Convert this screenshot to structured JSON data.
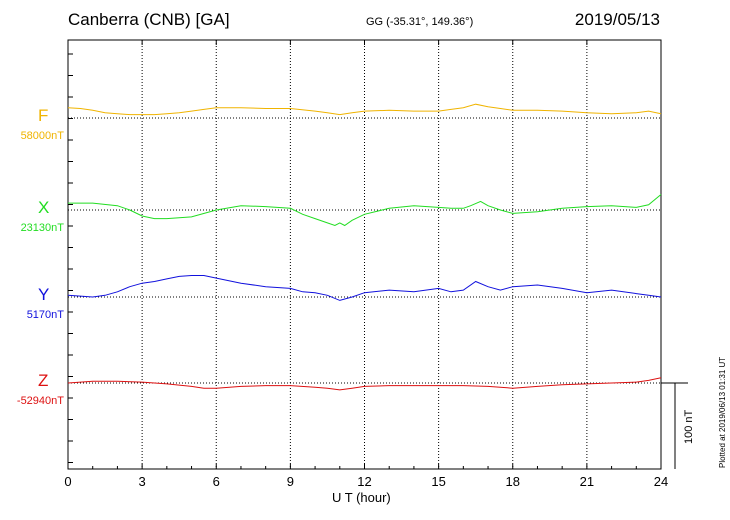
{
  "header": {
    "station": "Canberra (CNB)  [GA]",
    "coords": "GG (-35.31°, 149.36°)",
    "date": "2019/05/13"
  },
  "plotted_note": "Plotted at 2019/06/13 01:31  UT",
  "scale_label": "100 nT",
  "chart_data": {
    "type": "line",
    "xlabel": "U T (hour)",
    "xlim": [
      0,
      24
    ],
    "x_ticks": [
      0,
      3,
      6,
      9,
      12,
      15,
      18,
      21,
      24
    ],
    "grid": true,
    "scale_bar_nT": 100,
    "series": [
      {
        "name": "F",
        "baseline_label": "58000nT",
        "baseline_nT": 58000,
        "color": "#f0b400",
        "x": [
          0,
          0.5,
          1,
          1.5,
          2,
          2.5,
          3,
          3.5,
          4,
          4.5,
          5,
          5.5,
          6,
          7,
          8,
          9,
          10,
          10.5,
          11,
          11.5,
          12,
          13,
          14,
          15,
          15.5,
          16,
          16.5,
          17,
          17.5,
          18,
          19,
          20,
          21,
          22,
          23,
          23.5,
          24
        ],
        "values": [
          12,
          11,
          9,
          6,
          5,
          4,
          4,
          4,
          5,
          6,
          8,
          10,
          12,
          12,
          11,
          11,
          8,
          6,
          4,
          6,
          8,
          9,
          8,
          8,
          10,
          12,
          16,
          13,
          11,
          9,
          9,
          8,
          6,
          5,
          6,
          8,
          5
        ]
      },
      {
        "name": "X",
        "baseline_label": "23130nT",
        "baseline_nT": 23130,
        "color": "#22dd22",
        "x": [
          0,
          1,
          2,
          2.5,
          3,
          3.5,
          4,
          5,
          6,
          7,
          8,
          9,
          9.5,
          10,
          10.5,
          10.8,
          11,
          11.2,
          11.5,
          12,
          13,
          14,
          15,
          15.5,
          16,
          16.3,
          16.7,
          17,
          17.5,
          18,
          19,
          20,
          21,
          22,
          23,
          23.5,
          24
        ],
        "values": [
          8,
          8,
          5,
          0,
          -7,
          -10,
          -10,
          -8,
          0,
          5,
          4,
          2,
          -5,
          -10,
          -15,
          -18,
          -15,
          -18,
          -12,
          -5,
          2,
          5,
          3,
          2,
          2,
          5,
          10,
          5,
          0,
          -4,
          -2,
          2,
          4,
          5,
          3,
          6,
          18
        ]
      },
      {
        "name": "Y",
        "baseline_label": "5170nT",
        "baseline_nT": 5170,
        "color": "#1111dd",
        "x": [
          0,
          0.5,
          1,
          1.5,
          2,
          2.5,
          3,
          3.5,
          4,
          4.5,
          5,
          5.5,
          6,
          7,
          8,
          9,
          9.5,
          10,
          10.5,
          11,
          11.5,
          12,
          13,
          14,
          15,
          15.5,
          16,
          16.5,
          17,
          17.5,
          18,
          19,
          20,
          21,
          22,
          23,
          23.5,
          24
        ],
        "values": [
          2,
          1,
          0,
          2,
          6,
          12,
          16,
          18,
          21,
          24,
          25,
          25,
          22,
          16,
          12,
          10,
          6,
          5,
          2,
          -4,
          0,
          5,
          8,
          6,
          10,
          6,
          8,
          18,
          12,
          8,
          12,
          14,
          10,
          5,
          8,
          4,
          2,
          0
        ]
      },
      {
        "name": "Z",
        "baseline_label": "-52940nT",
        "baseline_nT": -52940,
        "color": "#dd1111",
        "x": [
          0,
          0.5,
          1,
          2,
          3,
          4,
          5,
          5.5,
          6,
          7,
          8,
          9,
          10,
          10.5,
          11,
          11.5,
          12,
          13,
          14,
          15,
          16,
          17,
          18,
          19,
          20,
          21,
          22,
          23,
          23.5,
          24
        ],
        "values": [
          0,
          1,
          2,
          2,
          1,
          -1,
          -4,
          -6,
          -6,
          -4,
          -3,
          -3,
          -5,
          -6,
          -8,
          -6,
          -4,
          -3,
          -3,
          -3,
          -3,
          -4,
          -6,
          -4,
          -2,
          -1,
          0,
          1,
          3,
          6
        ]
      }
    ]
  }
}
